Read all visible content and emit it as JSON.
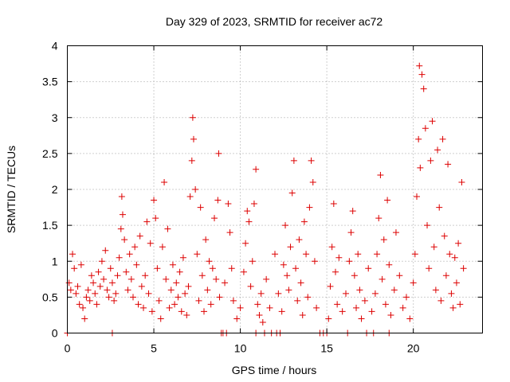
{
  "chart_data": {
    "type": "scatter",
    "title": "Day 329 of 2023, SRMTID for receiver ac72",
    "xlabel": "GPS time / hours",
    "ylabel": "SRMTID / TECUs",
    "xlim": [
      0,
      24
    ],
    "ylim": [
      0,
      4
    ],
    "xticks": [
      0,
      5,
      10,
      15,
      20
    ],
    "yticks": [
      0,
      0.5,
      1,
      1.5,
      2,
      2.5,
      3,
      3.5,
      4
    ],
    "xtick_labels": [
      "0",
      "5",
      "10",
      "15",
      "20"
    ],
    "ytick_labels": [
      "0",
      "0.5",
      "1",
      "1.5",
      "2",
      "2.5",
      "3",
      "3.5",
      "4"
    ],
    "grid": true,
    "marker": "+",
    "series": [
      {
        "name": "SRMTID",
        "color": "#dd0000",
        "points": [
          [
            0.1,
            0.7
          ],
          [
            0.2,
            0.6
          ],
          [
            0.3,
            1.1
          ],
          [
            0.4,
            0.9
          ],
          [
            0.5,
            0.55
          ],
          [
            0.6,
            0.65
          ],
          [
            0.7,
            0.4
          ],
          [
            0.8,
            0.95
          ],
          [
            0.9,
            0.35
          ],
          [
            1.0,
            0.2
          ],
          [
            1.1,
            0.5
          ],
          [
            1.2,
            0.6
          ],
          [
            1.3,
            0.45
          ],
          [
            1.4,
            0.8
          ],
          [
            1.5,
            0.7
          ],
          [
            1.6,
            0.55
          ],
          [
            1.7,
            0.4
          ],
          [
            1.8,
            0.85
          ],
          [
            1.9,
            0.65
          ],
          [
            2.0,
            1.0
          ],
          [
            2.1,
            0.75
          ],
          [
            2.2,
            1.15
          ],
          [
            2.3,
            0.6
          ],
          [
            2.4,
            0.5
          ],
          [
            2.5,
            0.9
          ],
          [
            2.6,
            0.7
          ],
          [
            2.7,
            0.45
          ],
          [
            2.8,
            0.55
          ],
          [
            2.9,
            0.8
          ],
          [
            3.0,
            1.05
          ],
          [
            3.1,
            1.45
          ],
          [
            3.15,
            1.9
          ],
          [
            3.2,
            1.65
          ],
          [
            3.3,
            1.3
          ],
          [
            3.4,
            0.85
          ],
          [
            3.5,
            0.6
          ],
          [
            3.6,
            1.1
          ],
          [
            3.7,
            0.75
          ],
          [
            3.8,
            0.5
          ],
          [
            3.9,
            1.2
          ],
          [
            4.0,
            0.95
          ],
          [
            4.1,
            0.4
          ],
          [
            4.2,
            1.35
          ],
          [
            4.3,
            0.65
          ],
          [
            4.4,
            0.35
          ],
          [
            4.5,
            0.8
          ],
          [
            4.6,
            1.55
          ],
          [
            4.7,
            0.55
          ],
          [
            4.8,
            1.25
          ],
          [
            4.9,
            0.3
          ],
          [
            5.0,
            1.85
          ],
          [
            5.1,
            1.6
          ],
          [
            5.2,
            0.9
          ],
          [
            5.3,
            0.45
          ],
          [
            5.4,
            0.2
          ],
          [
            5.5,
            1.2
          ],
          [
            5.6,
            2.1
          ],
          [
            5.7,
            0.75
          ],
          [
            5.8,
            1.45
          ],
          [
            5.9,
            0.35
          ],
          [
            6.0,
            0.6
          ],
          [
            6.1,
            0.95
          ],
          [
            6.2,
            0.4
          ],
          [
            6.3,
            0.7
          ],
          [
            6.4,
            0.5
          ],
          [
            6.5,
            0.85
          ],
          [
            6.6,
            0.3
          ],
          [
            6.7,
            1.05
          ],
          [
            6.8,
            0.55
          ],
          [
            6.9,
            0.25
          ],
          [
            7.0,
            0.65
          ],
          [
            7.1,
            1.9
          ],
          [
            7.2,
            2.4
          ],
          [
            7.25,
            3.0
          ],
          [
            7.3,
            2.7
          ],
          [
            7.4,
            2.0
          ],
          [
            7.5,
            1.1
          ],
          [
            7.6,
            0.45
          ],
          [
            7.7,
            1.75
          ],
          [
            7.8,
            0.8
          ],
          [
            7.9,
            0.3
          ],
          [
            8.0,
            1.3
          ],
          [
            8.1,
            0.6
          ],
          [
            8.2,
            1.0
          ],
          [
            8.3,
            0.4
          ],
          [
            8.4,
            0.9
          ],
          [
            8.5,
            1.6
          ],
          [
            8.6,
            0.75
          ],
          [
            8.7,
            1.85
          ],
          [
            8.75,
            2.5
          ],
          [
            8.8,
            0.5
          ],
          [
            9.1,
            0.7
          ],
          [
            9.3,
            1.8
          ],
          [
            9.4,
            1.4
          ],
          [
            9.5,
            0.9
          ],
          [
            9.6,
            0.45
          ],
          [
            9.8,
            0.2
          ],
          [
            10.0,
            0.35
          ],
          [
            10.2,
            0.85
          ],
          [
            10.3,
            1.25
          ],
          [
            10.4,
            1.7
          ],
          [
            10.5,
            1.55
          ],
          [
            10.6,
            0.65
          ],
          [
            10.7,
            1.0
          ],
          [
            10.8,
            1.8
          ],
          [
            10.9,
            2.28
          ],
          [
            11.0,
            0.4
          ],
          [
            11.1,
            0.25
          ],
          [
            11.2,
            0.55
          ],
          [
            11.3,
            0.15
          ],
          [
            11.5,
            0.75
          ],
          [
            11.7,
            0.35
          ],
          [
            12.0,
            1.1
          ],
          [
            12.2,
            0.55
          ],
          [
            12.4,
            0.3
          ],
          [
            12.5,
            0.95
          ],
          [
            12.6,
            1.5
          ],
          [
            12.7,
            0.8
          ],
          [
            12.8,
            0.6
          ],
          [
            12.9,
            1.2
          ],
          [
            13.0,
            1.95
          ],
          [
            13.1,
            2.4
          ],
          [
            13.2,
            0.9
          ],
          [
            13.3,
            0.45
          ],
          [
            13.4,
            1.3
          ],
          [
            13.5,
            0.7
          ],
          [
            13.6,
            0.25
          ],
          [
            13.7,
            1.55
          ],
          [
            13.8,
            1.1
          ],
          [
            13.9,
            0.5
          ],
          [
            14.0,
            1.75
          ],
          [
            14.1,
            2.4
          ],
          [
            14.2,
            2.1
          ],
          [
            14.3,
            1.0
          ],
          [
            14.4,
            0.35
          ],
          [
            15.1,
            0.2
          ],
          [
            15.2,
            0.65
          ],
          [
            15.3,
            1.2
          ],
          [
            15.4,
            1.8
          ],
          [
            15.5,
            0.85
          ],
          [
            15.6,
            0.4
          ],
          [
            15.7,
            1.05
          ],
          [
            15.9,
            0.3
          ],
          [
            16.1,
            0.55
          ],
          [
            16.3,
            1.0
          ],
          [
            16.4,
            1.4
          ],
          [
            16.5,
            1.7
          ],
          [
            16.6,
            0.8
          ],
          [
            16.7,
            0.35
          ],
          [
            16.8,
            1.1
          ],
          [
            16.9,
            0.6
          ],
          [
            17.0,
            0.2
          ],
          [
            17.2,
            0.45
          ],
          [
            17.4,
            0.9
          ],
          [
            17.6,
            0.3
          ],
          [
            17.8,
            0.55
          ],
          [
            17.9,
            1.1
          ],
          [
            18.0,
            1.6
          ],
          [
            18.1,
            2.2
          ],
          [
            18.2,
            0.75
          ],
          [
            18.3,
            1.3
          ],
          [
            18.4,
            0.4
          ],
          [
            18.5,
            1.85
          ],
          [
            18.6,
            0.95
          ],
          [
            18.7,
            0.25
          ],
          [
            18.9,
            0.6
          ],
          [
            19.0,
            1.4
          ],
          [
            19.2,
            0.8
          ],
          [
            19.4,
            0.35
          ],
          [
            19.6,
            0.5
          ],
          [
            19.8,
            0.2
          ],
          [
            20.0,
            0.7
          ],
          [
            20.1,
            1.1
          ],
          [
            20.2,
            1.9
          ],
          [
            20.3,
            2.7
          ],
          [
            20.35,
            3.72
          ],
          [
            20.4,
            2.3
          ],
          [
            20.5,
            3.6
          ],
          [
            20.6,
            3.4
          ],
          [
            20.7,
            2.85
          ],
          [
            20.8,
            1.5
          ],
          [
            20.9,
            0.9
          ],
          [
            21.0,
            2.4
          ],
          [
            21.1,
            2.95
          ],
          [
            21.2,
            1.2
          ],
          [
            21.3,
            0.6
          ],
          [
            21.4,
            2.55
          ],
          [
            21.5,
            1.75
          ],
          [
            21.6,
            0.45
          ],
          [
            21.7,
            2.7
          ],
          [
            21.8,
            1.35
          ],
          [
            21.9,
            0.8
          ],
          [
            22.0,
            2.35
          ],
          [
            22.1,
            1.1
          ],
          [
            22.2,
            0.55
          ],
          [
            22.3,
            0.35
          ],
          [
            22.4,
            1.05
          ],
          [
            22.5,
            0.7
          ],
          [
            22.6,
            1.25
          ],
          [
            22.7,
            0.4
          ],
          [
            22.8,
            2.1
          ],
          [
            22.9,
            0.9
          ],
          [
            0.0,
            0.0
          ],
          [
            2.6,
            0.0
          ],
          [
            8.9,
            0.0
          ],
          [
            9.0,
            0.0
          ],
          [
            9.2,
            0.0
          ],
          [
            10.9,
            0.0
          ],
          [
            11.4,
            0.0
          ],
          [
            11.8,
            0.0
          ],
          [
            12.1,
            0.0
          ],
          [
            12.3,
            0.0
          ],
          [
            14.6,
            0.0
          ],
          [
            14.8,
            0.0
          ],
          [
            15.0,
            0.0
          ],
          [
            16.2,
            0.0
          ],
          [
            17.3,
            0.0
          ],
          [
            17.7,
            0.0
          ],
          [
            18.6,
            0.0
          ]
        ]
      }
    ]
  }
}
